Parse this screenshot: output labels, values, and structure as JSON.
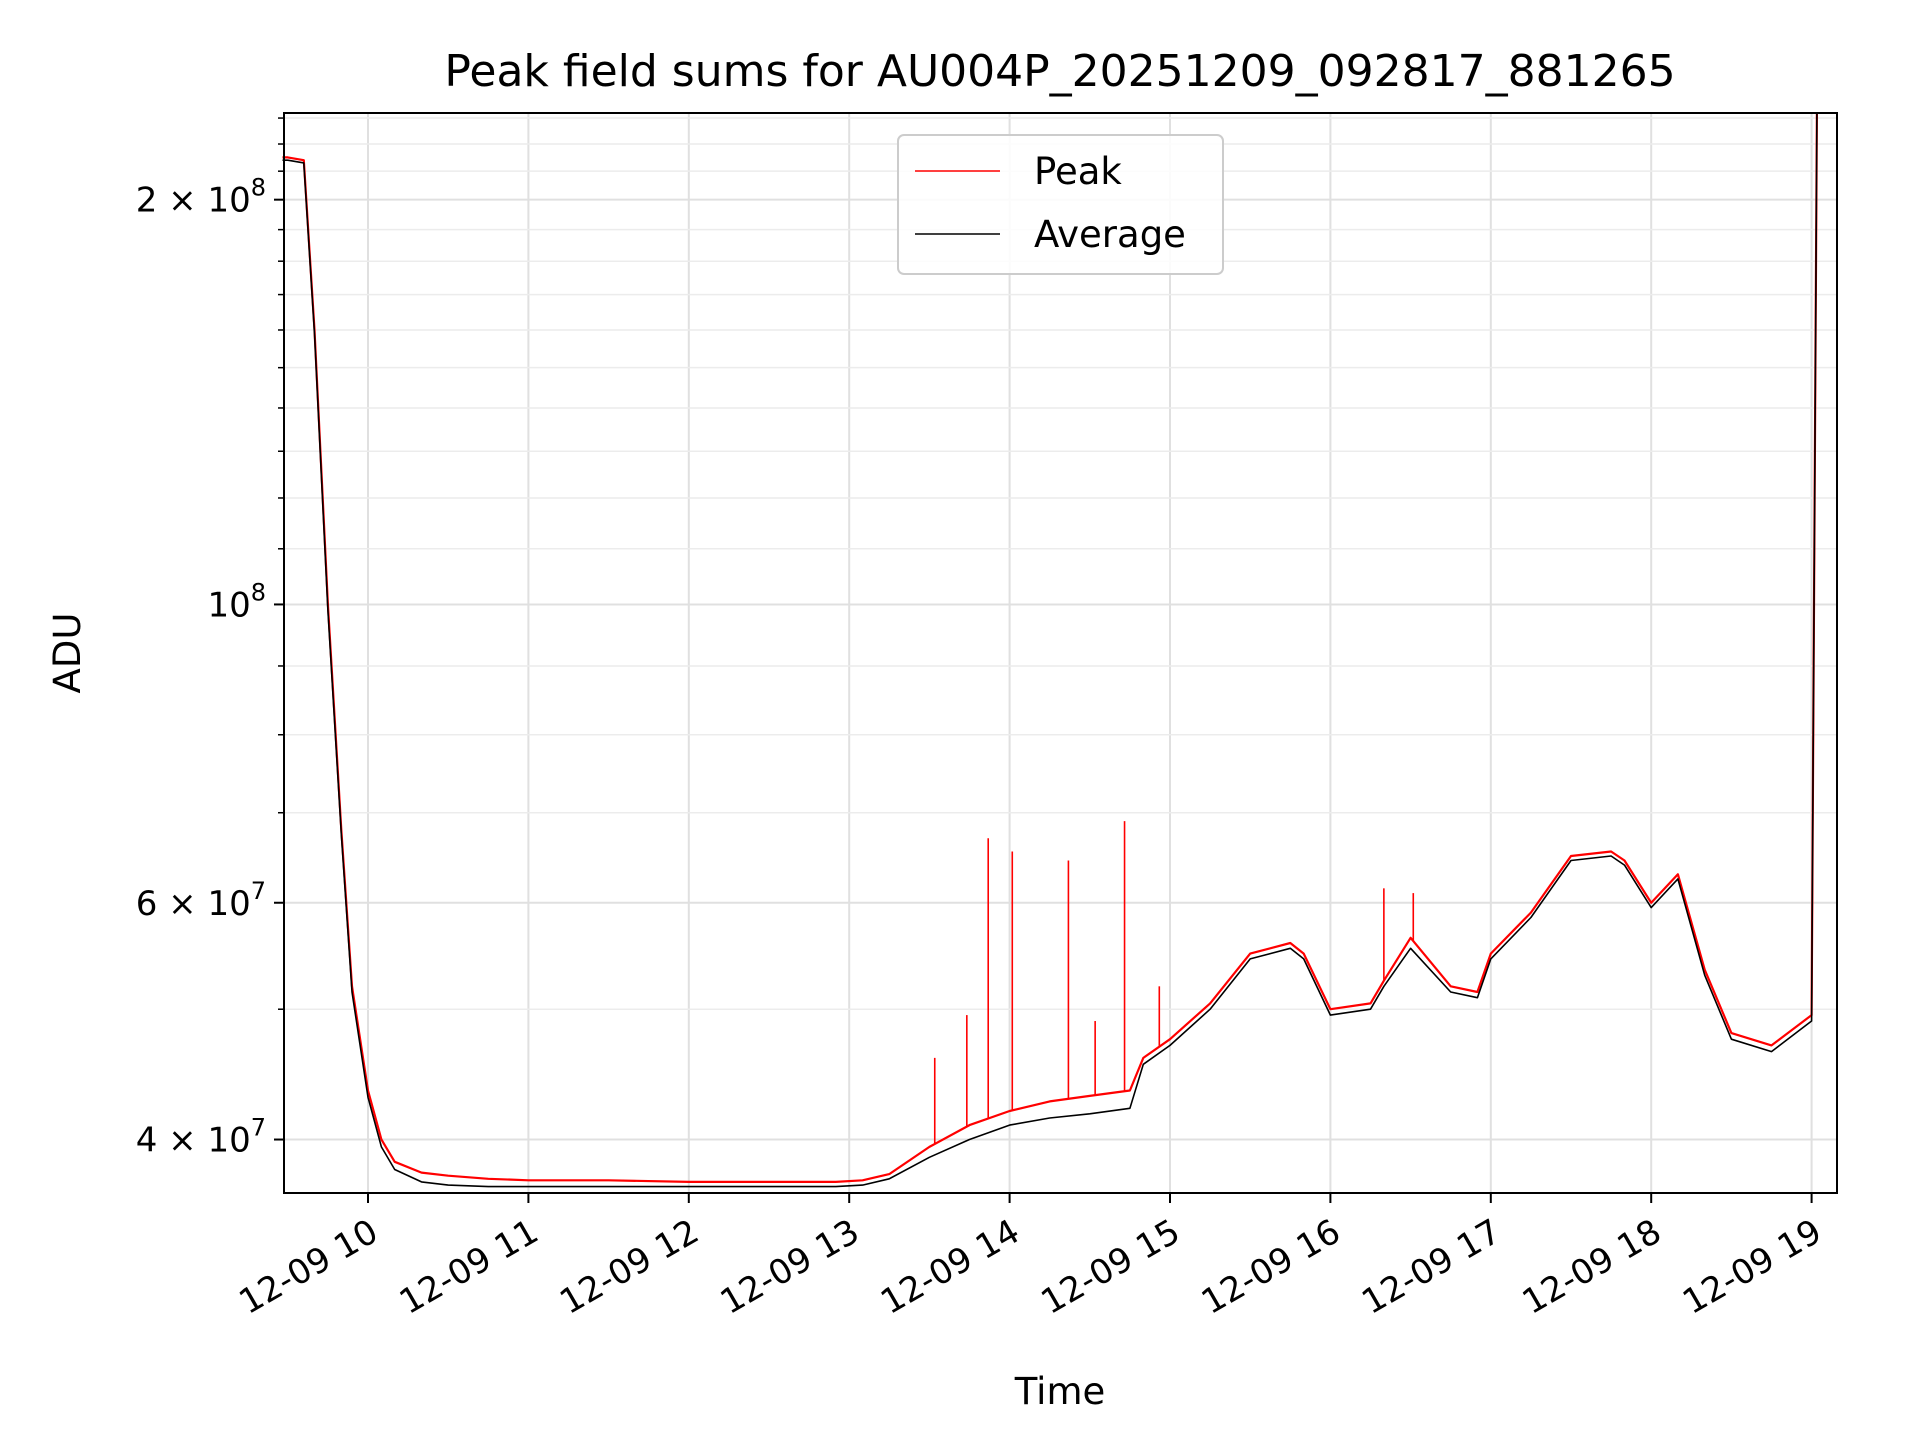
{
  "chart_data": {
    "type": "line",
    "title": "Peak field sums for AU004P_20251209_092817_881265",
    "xlabel": "Time",
    "ylabel": "ADU",
    "y_scale": "log",
    "ylim": [
      36500000,
      232000000
    ],
    "xlim": [
      "2025-12-09 09:28:17",
      "2025-12-09 19:02"
    ],
    "x_ticks": [
      "12-09 10",
      "12-09 11",
      "12-09 12",
      "12-09 13",
      "12-09 14",
      "12-09 15",
      "12-09 16",
      "12-09 17",
      "12-09 18",
      "12-09 19"
    ],
    "y_ticks": [
      {
        "value": 200000000,
        "mantissa": "2",
        "exp": "8"
      },
      {
        "value": 100000000,
        "mantissa": "",
        "exp": "8"
      },
      {
        "value": 60000000,
        "mantissa": "6",
        "exp": "7"
      },
      {
        "value": 40000000,
        "mantissa": "4",
        "exp": "7"
      }
    ],
    "grid": true,
    "legend_placement": "upper-center",
    "colors": {
      "peak": "#ff0000",
      "average": "#000000"
    },
    "series": [
      {
        "name": "Peak",
        "color": "#ff0000",
        "x": [
          "09:28",
          "09:30",
          "09:36",
          "09:40",
          "09:45",
          "09:50",
          "09:54",
          "10:00",
          "10:05",
          "10:10",
          "10:20",
          "10:30",
          "10:45",
          "11:00",
          "11:30",
          "12:00",
          "12:30",
          "12:55",
          "13:05",
          "13:15",
          "13:30",
          "13:45",
          "14:00",
          "14:15",
          "14:30",
          "14:45",
          "14:50",
          "15:00",
          "15:15",
          "15:30",
          "15:45",
          "15:50",
          "16:00",
          "16:15",
          "16:20",
          "16:30",
          "16:45",
          "16:55",
          "17:00",
          "17:15",
          "17:30",
          "17:45",
          "17:50",
          "18:00",
          "18:10",
          "18:20",
          "18:30",
          "18:45",
          "19:00",
          "19:02"
        ],
        "y": [
          215000000,
          215000000,
          214000000,
          160000000,
          100000000,
          68000000,
          52000000,
          43500000,
          40000000,
          38500000,
          37800000,
          37600000,
          37400000,
          37300000,
          37300000,
          37200000,
          37200000,
          37200000,
          37300000,
          37700000,
          39500000,
          41000000,
          42000000,
          42700000,
          43100000,
          43500000,
          46000000,
          47500000,
          50500000,
          55000000,
          56000000,
          55000000,
          50000000,
          50500000,
          52500000,
          56500000,
          52000000,
          51500000,
          55000000,
          59000000,
          65000000,
          65500000,
          64500000,
          60000000,
          63000000,
          53500000,
          48000000,
          47000000,
          49500000,
          232000000
        ],
        "spikes": [
          {
            "x": "13:52",
            "y": 67000000
          },
          {
            "x": "14:01",
            "y": 65500000
          },
          {
            "x": "14:22",
            "y": 64500000
          },
          {
            "x": "14:43",
            "y": 69000000
          },
          {
            "x": "13:44",
            "y": 49500000
          },
          {
            "x": "13:32",
            "y": 46000000
          },
          {
            "x": "14:32",
            "y": 49000000
          },
          {
            "x": "14:56",
            "y": 52000000
          },
          {
            "x": "16:20",
            "y": 61500000
          },
          {
            "x": "16:31",
            "y": 61000000
          }
        ]
      },
      {
        "name": "Average",
        "color": "#000000",
        "x": [
          "09:28",
          "09:30",
          "09:36",
          "09:40",
          "09:45",
          "09:50",
          "09:54",
          "10:00",
          "10:05",
          "10:10",
          "10:20",
          "10:30",
          "10:45",
          "11:00",
          "11:30",
          "12:00",
          "12:30",
          "12:55",
          "13:05",
          "13:15",
          "13:30",
          "13:45",
          "14:00",
          "14:15",
          "14:30",
          "14:45",
          "14:50",
          "15:00",
          "15:15",
          "15:30",
          "15:45",
          "15:50",
          "16:00",
          "16:15",
          "16:20",
          "16:30",
          "16:45",
          "16:55",
          "17:00",
          "17:15",
          "17:30",
          "17:45",
          "17:50",
          "18:00",
          "18:10",
          "18:20",
          "18:30",
          "18:45",
          "19:00",
          "19:02"
        ],
        "y": [
          214000000,
          214000000,
          213000000,
          159000000,
          99000000,
          67500000,
          51500000,
          43000000,
          39500000,
          38000000,
          37200000,
          37000000,
          36900000,
          36900000,
          36900000,
          36900000,
          36900000,
          36900000,
          37000000,
          37400000,
          38800000,
          40000000,
          41000000,
          41500000,
          41800000,
          42200000,
          45500000,
          47000000,
          50000000,
          54500000,
          55500000,
          54500000,
          49500000,
          50000000,
          52000000,
          55500000,
          51500000,
          51000000,
          54500000,
          58500000,
          64500000,
          65000000,
          64000000,
          59500000,
          62500000,
          53000000,
          47500000,
          46500000,
          49000000,
          232000000
        ]
      }
    ]
  }
}
